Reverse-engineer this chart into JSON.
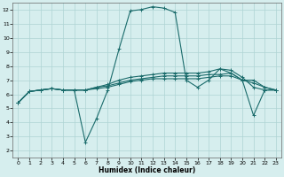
{
  "xlabel": "Humidex (Indice chaleur)",
  "bg_color": "#d6eeee",
  "grid_color": "#aed4d4",
  "line_color": "#1a6b6b",
  "xlim": [
    -0.5,
    23.5
  ],
  "ylim": [
    1.5,
    12.5
  ],
  "xticks": [
    0,
    1,
    2,
    3,
    4,
    5,
    6,
    7,
    8,
    9,
    10,
    11,
    12,
    13,
    14,
    15,
    16,
    17,
    18,
    19,
    20,
    21,
    22,
    23
  ],
  "yticks": [
    2,
    3,
    4,
    5,
    6,
    7,
    8,
    9,
    10,
    11,
    12
  ],
  "lines_x": [
    [
      0,
      1,
      2,
      3,
      4,
      5,
      6,
      7,
      8,
      9,
      10,
      11,
      12,
      13,
      14,
      15,
      16,
      17,
      18,
      19,
      20,
      21,
      22,
      23
    ],
    [
      0,
      1,
      2,
      3,
      4,
      5,
      6,
      7,
      8,
      9,
      10,
      11,
      12,
      13,
      14,
      15,
      16,
      17,
      18,
      19,
      20,
      21,
      22,
      23
    ],
    [
      0,
      1,
      2,
      3,
      4,
      5,
      6,
      7,
      8,
      9,
      10,
      11,
      12,
      13,
      14,
      15,
      16,
      17,
      18,
      19,
      20,
      21,
      22,
      23
    ],
    [
      0,
      1,
      2,
      3,
      4,
      5,
      6,
      7,
      8,
      9,
      10,
      11,
      12,
      13,
      14,
      15,
      16,
      17,
      18,
      19,
      20,
      21,
      22,
      23
    ]
  ],
  "lines_y": [
    [
      5.4,
      6.2,
      6.3,
      6.4,
      6.3,
      6.3,
      2.6,
      4.3,
      6.3,
      9.2,
      11.9,
      12.0,
      12.2,
      12.1,
      11.8,
      7.0,
      6.5,
      7.0,
      7.8,
      7.5,
      7.0,
      4.5,
      6.3,
      6.3
    ],
    [
      5.4,
      6.2,
      6.3,
      6.4,
      6.3,
      6.3,
      6.3,
      6.5,
      6.6,
      6.8,
      7.0,
      7.1,
      7.2,
      7.3,
      7.3,
      7.3,
      7.3,
      7.4,
      7.4,
      7.5,
      7.0,
      7.0,
      6.5,
      6.3
    ],
    [
      5.4,
      6.2,
      6.3,
      6.4,
      6.3,
      6.3,
      6.3,
      6.4,
      6.5,
      6.7,
      6.9,
      7.0,
      7.1,
      7.1,
      7.1,
      7.1,
      7.1,
      7.2,
      7.3,
      7.3,
      7.0,
      6.8,
      6.5,
      6.3
    ],
    [
      5.4,
      6.2,
      6.3,
      6.4,
      6.3,
      6.3,
      6.3,
      6.5,
      6.7,
      7.0,
      7.2,
      7.3,
      7.4,
      7.5,
      7.5,
      7.5,
      7.5,
      7.6,
      7.8,
      7.7,
      7.2,
      6.5,
      6.3,
      6.3
    ]
  ],
  "xlabel_fontsize": 5.5,
  "tick_fontsize": 4.5,
  "linewidth": 0.8,
  "markersize": 2.5
}
